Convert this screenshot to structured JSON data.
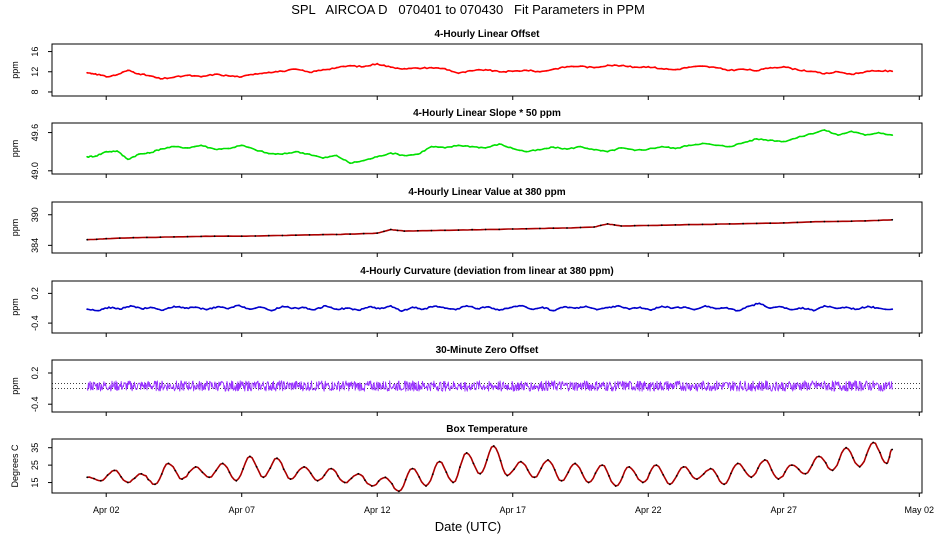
{
  "title": "SPL   AIRCOA D   070401 to 070430   Fit Parameters in PPM",
  "x_axis_label": "Date (UTC)",
  "chart_data": [
    {
      "type": "line",
      "title": "4-Hourly Linear Offset",
      "ylabel": "ppm",
      "yticks": [
        "8",
        "12",
        "16"
      ],
      "yticks_values": [
        8,
        12,
        16
      ],
      "ylim": [
        7.2,
        17.5
      ],
      "color": "#ff0000",
      "x": [
        1.3,
        1.6,
        2.0,
        2.4,
        2.8,
        3.2,
        3.6,
        4.0,
        4.5,
        5.0,
        5.5,
        6.0,
        6.5,
        7.0,
        7.5,
        8.0,
        8.5,
        9.0,
        9.5,
        10.0,
        10.5,
        11.0,
        11.5,
        12.0,
        12.5,
        13.0,
        13.5,
        14.0,
        14.5,
        15.0,
        15.5,
        16.0,
        16.5,
        17.0,
        17.5,
        18.0,
        18.5,
        19.0,
        19.5,
        20.0,
        20.5,
        21.0,
        21.5,
        22.0,
        22.5,
        23.0,
        23.5,
        24.0,
        24.5,
        25.0,
        25.5,
        26.0,
        26.5,
        27.0,
        27.5,
        28.0,
        28.5,
        29.0,
        29.5,
        30.0,
        30.5,
        31.0
      ],
      "values": [
        11.8,
        11.6,
        11.0,
        11.4,
        12.3,
        11.6,
        11.2,
        10.6,
        10.9,
        11.3,
        11.0,
        11.5,
        11.2,
        11.0,
        11.6,
        11.9,
        12.1,
        12.5,
        11.9,
        12.4,
        12.8,
        13.2,
        13.0,
        13.6,
        12.9,
        12.6,
        12.7,
        12.8,
        12.6,
        11.7,
        12.2,
        12.4,
        12.0,
        12.1,
        12.3,
        12.0,
        12.5,
        13.0,
        13.1,
        12.8,
        13.3,
        13.2,
        12.9,
        13.0,
        12.6,
        12.4,
        12.9,
        13.1,
        12.8,
        12.3,
        12.5,
        12.2,
        12.8,
        13.0,
        12.4,
        12.1,
        11.6,
        12.0,
        11.5,
        12.0,
        12.2,
        12.1
      ]
    },
    {
      "type": "line",
      "title": "4-Hourly Linear Slope * 50 ppm",
      "ylabel": "ppm",
      "yticks": [
        "49.0",
        "49.6"
      ],
      "yticks_values": [
        49.0,
        49.6
      ],
      "ylim": [
        48.95,
        49.75
      ],
      "color": "#00e000",
      "x": [
        1.3,
        1.6,
        2.0,
        2.4,
        2.8,
        3.2,
        3.6,
        4.0,
        4.5,
        5.0,
        5.5,
        6.0,
        6.5,
        7.0,
        7.5,
        8.0,
        8.5,
        9.0,
        9.5,
        10.0,
        10.5,
        11.0,
        11.5,
        12.0,
        12.5,
        13.0,
        13.5,
        14.0,
        14.5,
        15.0,
        15.5,
        16.0,
        16.5,
        17.0,
        17.5,
        18.0,
        18.5,
        19.0,
        19.5,
        20.0,
        20.5,
        21.0,
        21.5,
        22.0,
        22.5,
        23.0,
        23.5,
        24.0,
        24.5,
        25.0,
        25.5,
        26.0,
        26.5,
        27.0,
        27.5,
        28.0,
        28.5,
        29.0,
        29.5,
        30.0,
        30.5,
        31.0
      ],
      "values": [
        49.22,
        49.23,
        49.3,
        49.31,
        49.18,
        49.26,
        49.28,
        49.34,
        49.38,
        49.36,
        49.4,
        49.34,
        49.35,
        49.4,
        49.33,
        49.27,
        49.26,
        49.3,
        49.26,
        49.2,
        49.24,
        49.12,
        49.16,
        49.22,
        49.28,
        49.24,
        49.26,
        49.38,
        49.36,
        49.4,
        49.38,
        49.36,
        49.42,
        49.35,
        49.3,
        49.33,
        49.37,
        49.34,
        49.38,
        49.33,
        49.3,
        49.36,
        49.32,
        49.34,
        49.38,
        49.35,
        49.4,
        49.43,
        49.4,
        49.38,
        49.44,
        49.5,
        49.48,
        49.46,
        49.52,
        49.58,
        49.64,
        49.56,
        49.62,
        49.56,
        49.6,
        49.56
      ]
    },
    {
      "type": "line",
      "title": "4-Hourly Linear Value at 380 ppm",
      "ylabel": "ppm",
      "yticks": [
        "384",
        "390"
      ],
      "yticks_values": [
        384,
        390
      ],
      "ylim": [
        382.5,
        392.5
      ],
      "color": "#aa0000",
      "x": [
        1.3,
        2.0,
        3.0,
        4.0,
        5.0,
        6.0,
        7.0,
        8.0,
        9.0,
        10.0,
        11.0,
        12.0,
        12.5,
        13.0,
        14.0,
        15.0,
        16.0,
        17.0,
        18.0,
        19.0,
        20.0,
        20.5,
        21.0,
        22.0,
        23.0,
        24.0,
        25.0,
        26.0,
        27.0,
        28.0,
        29.0,
        30.0,
        31.0
      ],
      "values": [
        385.1,
        385.3,
        385.5,
        385.6,
        385.7,
        385.8,
        385.8,
        385.9,
        386.0,
        386.1,
        386.2,
        386.4,
        387.1,
        386.8,
        386.9,
        387.0,
        387.1,
        387.2,
        387.3,
        387.4,
        387.6,
        388.2,
        387.8,
        387.9,
        388.0,
        388.1,
        388.2,
        388.3,
        388.4,
        388.6,
        388.7,
        388.8,
        389.0
      ]
    },
    {
      "type": "line",
      "title": "4-Hourly Curvature (deviation from linear at 380 ppm)",
      "ylabel": "ppm",
      "yticks": [
        "-0.4",
        "0.2"
      ],
      "yticks_values": [
        -0.4,
        0.2
      ],
      "ylim": [
        -0.6,
        0.45
      ],
      "color": "#0000cc",
      "x": [
        1.3,
        1.7,
        2.1,
        2.5,
        2.9,
        3.3,
        3.7,
        4.1,
        4.5,
        4.9,
        5.3,
        5.7,
        6.1,
        6.5,
        6.9,
        7.3,
        7.7,
        8.1,
        8.5,
        8.9,
        9.3,
        9.7,
        10.1,
        10.5,
        10.9,
        11.3,
        11.7,
        12.1,
        12.5,
        12.9,
        13.3,
        13.7,
        14.1,
        14.5,
        14.9,
        15.3,
        15.7,
        16.1,
        16.5,
        16.9,
        17.3,
        17.7,
        18.1,
        18.5,
        18.9,
        19.3,
        19.7,
        20.1,
        20.5,
        20.9,
        21.3,
        21.7,
        22.1,
        22.5,
        22.9,
        23.3,
        23.7,
        24.1,
        24.5,
        24.9,
        25.3,
        25.7,
        26.1,
        26.5,
        26.9,
        27.3,
        27.7,
        28.1,
        28.5,
        28.9,
        29.3,
        29.7,
        30.1,
        30.5,
        31.0
      ],
      "values": [
        -0.12,
        -0.15,
        -0.08,
        -0.12,
        -0.05,
        -0.11,
        -0.09,
        -0.14,
        -0.06,
        -0.1,
        -0.08,
        -0.13,
        -0.07,
        -0.11,
        -0.04,
        -0.12,
        -0.08,
        -0.15,
        -0.06,
        -0.1,
        -0.09,
        -0.13,
        -0.05,
        -0.12,
        -0.1,
        -0.14,
        -0.07,
        -0.11,
        -0.05,
        -0.16,
        -0.08,
        -0.12,
        -0.06,
        -0.1,
        -0.13,
        -0.05,
        -0.11,
        -0.07,
        -0.14,
        -0.09,
        -0.05,
        -0.12,
        -0.08,
        -0.15,
        -0.07,
        -0.1,
        -0.06,
        -0.13,
        -0.09,
        -0.05,
        -0.12,
        -0.08,
        -0.14,
        -0.06,
        -0.1,
        -0.08,
        -0.13,
        -0.05,
        -0.11,
        -0.09,
        -0.15,
        -0.06,
        0.0,
        -0.1,
        -0.07,
        -0.13,
        -0.09,
        -0.15,
        -0.05,
        -0.1,
        -0.08,
        -0.12,
        -0.06,
        -0.1,
        -0.12
      ]
    },
    {
      "type": "line",
      "title": "30-Minute Zero Offset",
      "ylabel": "ppm",
      "yticks": [
        "-0.4",
        "0.2"
      ],
      "yticks_values": [
        -0.4,
        0.2
      ],
      "ylim": [
        -0.55,
        0.45
      ],
      "color": "#9933ff",
      "reference_lines": [
        0.0,
        -0.1
      ],
      "x_start": 1.3,
      "x_end": 31.0,
      "baseline": -0.05,
      "noise_amplitude": 0.1
    },
    {
      "type": "line",
      "title": "Box Temperature",
      "ylabel": "Degrees C",
      "yticks": [
        "15",
        "25",
        "35"
      ],
      "yticks_values": [
        15,
        25,
        35
      ],
      "ylim": [
        9,
        40
      ],
      "color": "#aa0000",
      "x": [
        1.3,
        1.8,
        2.3,
        2.8,
        3.3,
        3.8,
        4.3,
        4.8,
        5.3,
        5.8,
        6.3,
        6.8,
        7.3,
        7.8,
        8.3,
        8.8,
        9.3,
        9.8,
        10.3,
        10.8,
        11.3,
        11.8,
        12.3,
        12.8,
        13.3,
        13.8,
        14.3,
        14.8,
        15.3,
        15.8,
        16.3,
        16.8,
        17.3,
        17.8,
        18.3,
        18.8,
        19.3,
        19.8,
        20.3,
        20.8,
        21.3,
        21.8,
        22.3,
        22.8,
        23.3,
        23.8,
        24.3,
        24.8,
        25.3,
        25.8,
        26.3,
        26.8,
        27.3,
        27.8,
        28.3,
        28.8,
        29.3,
        29.8,
        30.3,
        30.8,
        31.0
      ],
      "values": [
        18,
        16,
        22,
        15,
        20,
        14,
        26,
        17,
        24,
        18,
        26,
        16,
        30,
        18,
        29,
        17,
        24,
        16,
        23,
        15,
        20,
        13,
        18,
        10,
        23,
        13,
        27,
        15,
        32,
        20,
        36,
        19,
        27,
        18,
        28,
        16,
        26,
        15,
        25,
        13,
        24,
        15,
        25,
        14,
        24,
        17,
        23,
        14,
        26,
        18,
        28,
        17,
        25,
        20,
        30,
        22,
        35,
        24,
        38,
        26,
        34
      ]
    }
  ],
  "x_axis": {
    "ticks": [
      "Apr 02",
      "Apr 07",
      "Apr 12",
      "Apr 17",
      "Apr 22",
      "Apr 27",
      "May 02"
    ],
    "tick_days": [
      2,
      7,
      12,
      17,
      22,
      27,
      32
    ],
    "xlim": [
      0.0,
      32.1
    ]
  }
}
